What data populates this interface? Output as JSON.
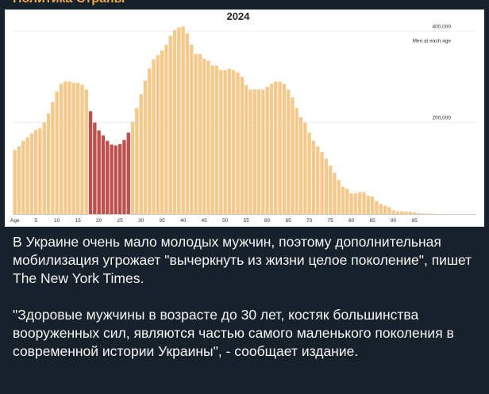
{
  "post": {
    "channel_title": "Политика Страны",
    "paragraph_1": "В Украине очень мало молодых мужчин, поэтому дополнительная мобилизация угрожает \"вычеркнуть из жизни целое поколение\", пишет The New York Times.",
    "paragraph_2": "\"Здоровые мужчины в возрасте до 30 лет, костяк большинства вооруженных сил, являются частью самого маленького поколения в современной истории Украины\", - сообщает издание."
  },
  "colors": {
    "bar": "#f5c98b",
    "highlight": "#c0504d",
    "grid": "#dddddd",
    "text": "#333333"
  },
  "chart_data": {
    "type": "bar",
    "title": "2024",
    "xlabel": "Age",
    "ylabel": "Men at each age",
    "ylim": [
      0,
      430000
    ],
    "yticks": [
      {
        "value": 200000,
        "label": "200,000"
      },
      {
        "value": 400000,
        "label": "400,000"
      }
    ],
    "x_tick_labels": [
      "5",
      "10",
      "15",
      "20",
      "25",
      "30",
      "35",
      "40",
      "45",
      "50",
      "55",
      "60",
      "65",
      "70",
      "75",
      "80",
      "85",
      "90",
      "95"
    ],
    "x_tick_values": [
      5,
      10,
      15,
      20,
      25,
      30,
      35,
      40,
      45,
      50,
      55,
      60,
      65,
      70,
      75,
      80,
      85,
      90,
      95
    ],
    "ages": [
      0,
      1,
      2,
      3,
      4,
      5,
      6,
      7,
      8,
      9,
      10,
      11,
      12,
      13,
      14,
      15,
      16,
      17,
      18,
      19,
      20,
      21,
      22,
      23,
      24,
      25,
      26,
      27,
      28,
      29,
      30,
      31,
      32,
      33,
      34,
      35,
      36,
      37,
      38,
      39,
      40,
      41,
      42,
      43,
      44,
      45,
      46,
      47,
      48,
      49,
      50,
      51,
      52,
      53,
      54,
      55,
      56,
      57,
      58,
      59,
      60,
      61,
      62,
      63,
      64,
      65,
      66,
      67,
      68,
      69,
      70,
      71,
      72,
      73,
      74,
      75,
      76,
      77,
      78,
      79,
      80,
      81,
      82,
      83,
      84,
      85,
      86,
      87,
      88,
      89,
      90,
      91,
      92,
      93,
      94,
      95,
      96,
      97,
      98,
      99,
      100
    ],
    "values": [
      140000,
      148000,
      160000,
      168000,
      176000,
      184000,
      188000,
      200000,
      220000,
      245000,
      268000,
      285000,
      290000,
      290000,
      287000,
      287000,
      283000,
      272000,
      225000,
      200000,
      183000,
      172000,
      160000,
      152000,
      150000,
      153000,
      162000,
      178000,
      202000,
      232000,
      262000,
      292000,
      318000,
      338000,
      348000,
      358000,
      370000,
      390000,
      402000,
      408000,
      410000,
      395000,
      370000,
      350000,
      350000,
      340000,
      335000,
      325000,
      325000,
      315000,
      315000,
      318000,
      315000,
      310000,
      300000,
      282000,
      272000,
      273000,
      273000,
      272000,
      278000,
      285000,
      290000,
      290000,
      285000,
      272000,
      255000,
      232000,
      212000,
      200000,
      178000,
      160000,
      148000,
      136000,
      121000,
      106000,
      90000,
      74000,
      60000,
      55000,
      45000,
      45000,
      48000,
      48000,
      40000,
      38000,
      28000,
      22000,
      18000,
      15000,
      8000,
      6000,
      6000,
      6000,
      5000,
      4000,
      2000,
      1500,
      1000,
      800,
      500
    ],
    "highlight_ages": [
      18,
      19,
      20,
      21,
      22,
      23,
      24,
      25,
      26,
      27
    ]
  }
}
